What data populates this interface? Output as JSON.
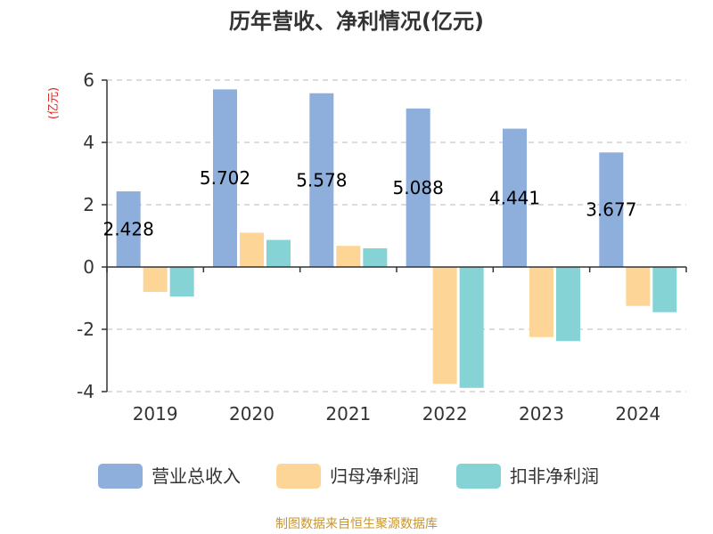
{
  "chart_data": {
    "type": "bar",
    "title": "历年营收、净利情况(亿元)",
    "ylabel": "(亿元)",
    "categories": [
      "2019",
      "2020",
      "2021",
      "2022",
      "2023",
      "2024"
    ],
    "ylim": [
      -4,
      6
    ],
    "yticks": [
      "-4",
      "-2",
      "0",
      "2",
      "4",
      "6"
    ],
    "grid": true,
    "legend_position": "bottom",
    "series": [
      {
        "name": "营业总收入",
        "color": "#8eaedb",
        "values": [
          2.428,
          5.702,
          5.578,
          5.088,
          4.441,
          3.677
        ],
        "labels": [
          "2.428",
          "5.702",
          "5.578",
          "5.088",
          "4.441",
          "3.677"
        ]
      },
      {
        "name": "归母净利润",
        "color": "#fdd697",
        "values": [
          -0.8,
          1.1,
          0.68,
          -3.75,
          -2.25,
          -1.25
        ]
      },
      {
        "name": "扣非净利润",
        "color": "#86d3d5",
        "values": [
          -0.95,
          0.87,
          0.6,
          -3.88,
          -2.38,
          -1.45
        ]
      }
    ]
  },
  "source": "制图数据来自恒生聚源数据库"
}
